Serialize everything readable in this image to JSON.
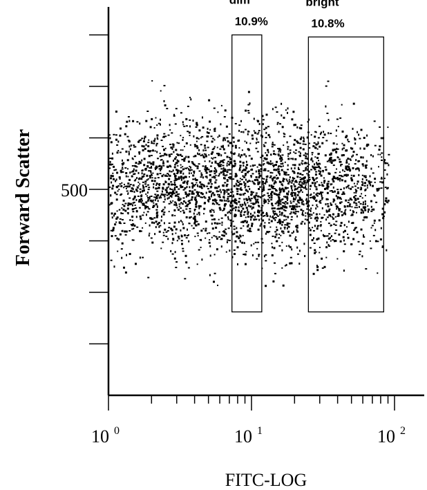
{
  "chart_data": {
    "type": "scatter",
    "title": "",
    "xlabel": "FITC-LOG",
    "ylabel": "Forward Scatter",
    "x_scale": "log",
    "xlim": [
      1,
      200
    ],
    "ylim": [
      0,
      1000
    ],
    "x_ticks": [
      {
        "base": "10",
        "exp": "0",
        "value": 1
      },
      {
        "base": "10",
        "exp": "1",
        "value": 10
      },
      {
        "base": "10",
        "exp": "2",
        "value": 100
      }
    ],
    "y_ticks": [
      {
        "label": "500",
        "value": 500
      }
    ],
    "y_minor_ticks": [
      100,
      200,
      300,
      400,
      600,
      700,
      800,
      900
    ],
    "grid": false,
    "gates": [
      {
        "name": "dim",
        "percent": "10.9%",
        "x_range": [
          7.3,
          11.8
        ],
        "y_range": [
          162,
          700
        ]
      },
      {
        "name": "bright",
        "percent": "10.8%",
        "x_range": [
          25,
          84
        ],
        "y_range": [
          162,
          696
        ]
      }
    ],
    "population": {
      "description_clusters": [
        {
          "x_center": 2.1,
          "y_center": 410,
          "weight": 0.35
        },
        {
          "x_center": 9.5,
          "y_center": 405,
          "weight": 0.25
        },
        {
          "x_center": 22,
          "y_center": 400,
          "weight": 0.28
        },
        {
          "x_center": 50,
          "y_center": 415,
          "weight": 0.12
        }
      ],
      "x_range": [
        1,
        90
      ],
      "y_range": [
        210,
        620
      ],
      "event_count": 3200
    }
  }
}
